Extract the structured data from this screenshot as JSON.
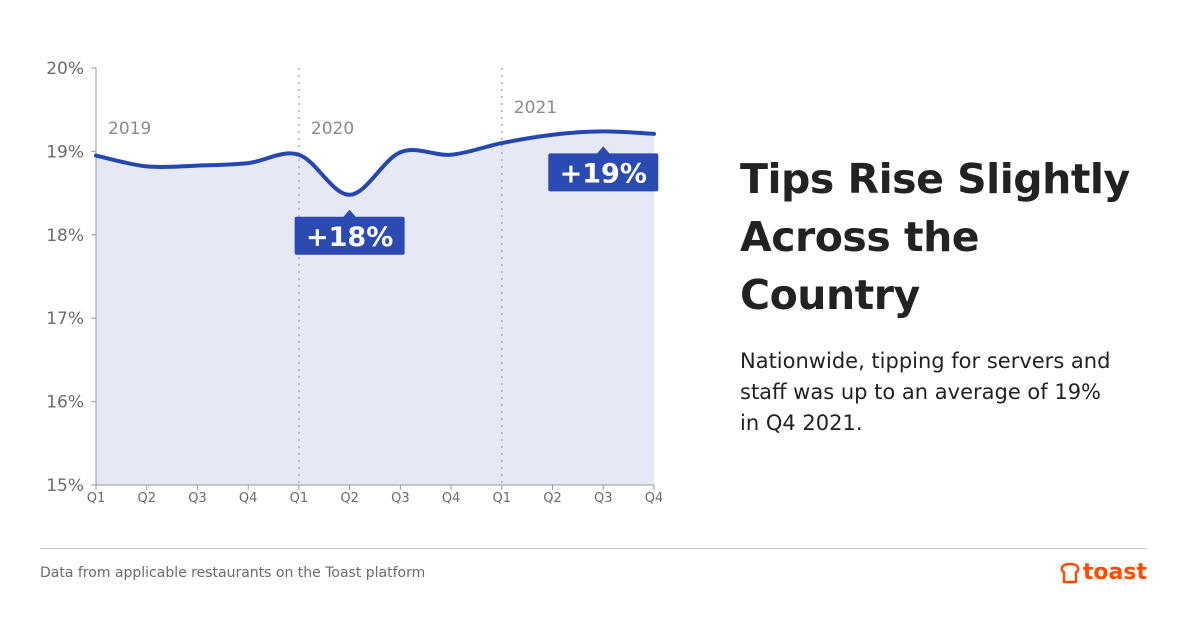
{
  "chart_data": {
    "type": "area",
    "x": [
      "Q1",
      "Q2",
      "Q3",
      "Q4",
      "Q1",
      "Q2",
      "Q3",
      "Q4",
      "Q1",
      "Q2",
      "Q3",
      "Q4"
    ],
    "year_labels": [
      {
        "label": "2019",
        "index": 0
      },
      {
        "label": "2020",
        "index": 4
      },
      {
        "label": "2021",
        "index": 8
      }
    ],
    "values": [
      18.95,
      18.82,
      18.83,
      18.86,
      18.96,
      18.48,
      18.99,
      18.96,
      19.1,
      19.2,
      19.24,
      19.21
    ],
    "ylim": [
      15,
      20
    ],
    "yticks": [
      "15%",
      "16%",
      "17%",
      "18%",
      "19%",
      "20%"
    ],
    "ytick_values": [
      15,
      16,
      17,
      18,
      19,
      20
    ],
    "callouts": [
      {
        "text": "+18%",
        "index": 5
      },
      {
        "text": "+19%",
        "index": 10
      }
    ],
    "line_color": "#2548b0",
    "fill_color": "#e6e8f5",
    "callout_color": "#2b4bb3",
    "grid": false
  },
  "headline": "Tips Rise Slightly Across the Country",
  "subtext": "Nationwide, tipping for servers and staff was up to an average of 19% in Q4 2021.",
  "footer_note": "Data from applicable restaurants on the Toast platform",
  "brand": {
    "name": "toast",
    "color": "#ff4c00"
  }
}
